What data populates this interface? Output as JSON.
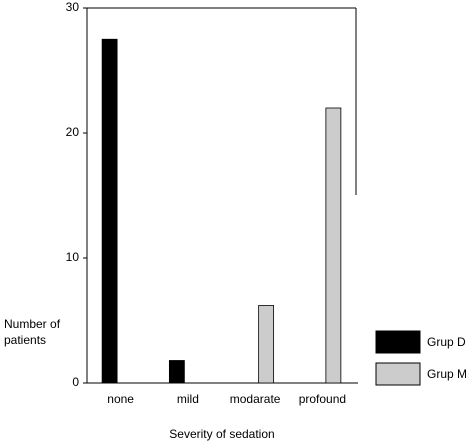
{
  "chart_data": {
    "type": "bar",
    "xlabel": "Severity of sedation",
    "ylabel": "Number of patients",
    "categories": [
      "none",
      "mild",
      "modarate",
      "profound"
    ],
    "series": [
      {
        "name": "Grup D",
        "color": "#000000",
        "values": [
          27.5,
          1.8,
          0,
          0
        ]
      },
      {
        "name": "Grup M",
        "color": "#cccccc",
        "values": [
          0,
          0,
          6.2,
          22
        ]
      }
    ],
    "ylim": [
      0,
      30
    ],
    "yticks": [
      0,
      10,
      20,
      30
    ],
    "legend": "right"
  }
}
